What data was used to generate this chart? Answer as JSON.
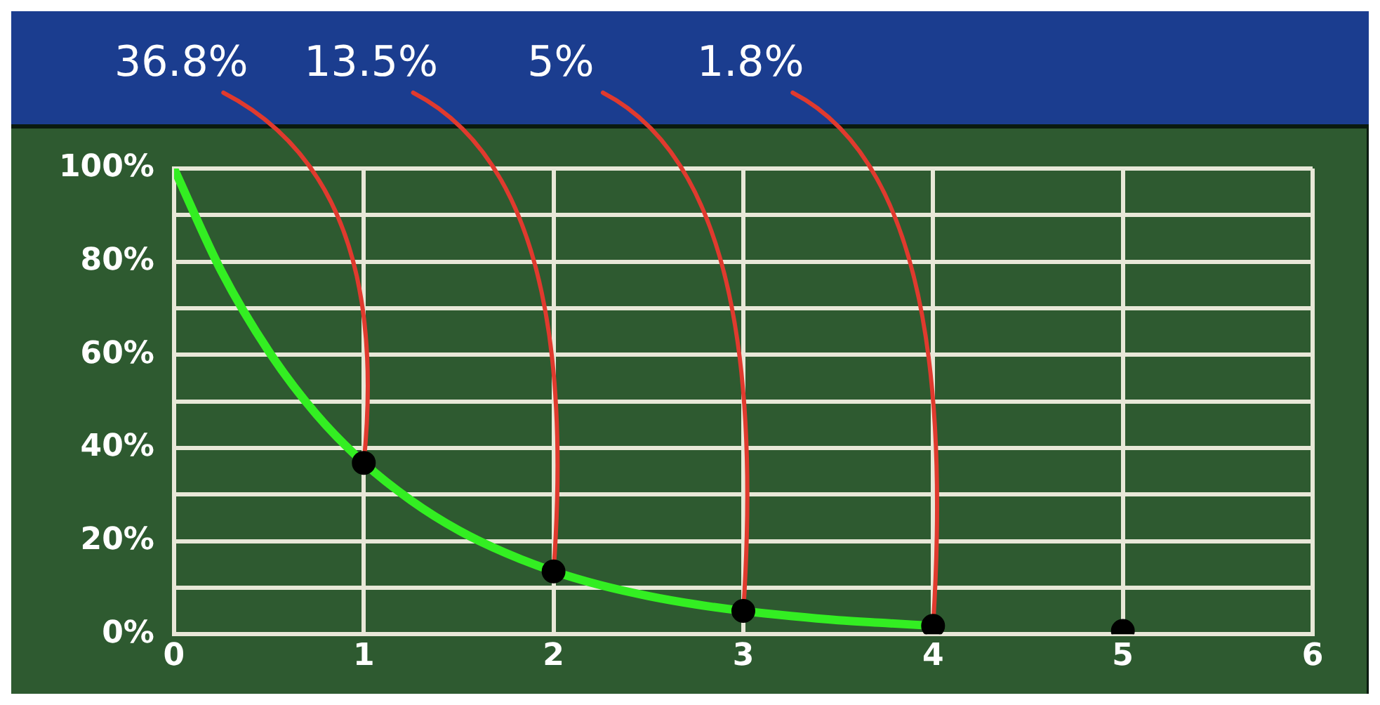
{
  "chart_data": {
    "type": "line",
    "series": [
      {
        "color": "#33ee22",
        "x": [
          0,
          0.25,
          0.5,
          0.75,
          1,
          1.25,
          1.5,
          1.75,
          2,
          2.25,
          2.5,
          2.75,
          3,
          3.25,
          3.5,
          3.75,
          4
        ],
        "values": [
          100,
          77.9,
          60.7,
          47.2,
          36.8,
          28.7,
          22.3,
          17.4,
          13.5,
          10.5,
          8.2,
          6.4,
          5,
          3.9,
          3,
          2.4,
          1.8
        ],
        "marker": "none"
      },
      {
        "type": "scatter",
        "color": "#000000",
        "x": [
          1,
          2,
          3,
          4,
          5
        ],
        "values": [
          36.8,
          13.5,
          5,
          1.8,
          0.7
        ],
        "marker": "circle"
      }
    ],
    "xlim": [
      0,
      6
    ],
    "xticks": [
      0,
      1,
      2,
      3,
      4,
      5,
      6
    ],
    "ylim": [
      0,
      100
    ],
    "yticks": [
      {
        "value": 0,
        "label": "0%"
      },
      {
        "value": 10,
        "label": null
      },
      {
        "value": 20,
        "label": "20%"
      },
      {
        "value": 30,
        "label": null
      },
      {
        "value": 40,
        "label": "40%"
      },
      {
        "value": 50,
        "label": null
      },
      {
        "value": 60,
        "label": "60%"
      },
      {
        "value": 70,
        "label": null
      },
      {
        "value": 80,
        "label": "80%"
      },
      {
        "value": 90,
        "label": null
      },
      {
        "value": 100,
        "label": "100%"
      }
    ],
    "grid": true,
    "legend": false,
    "annotations": [
      {
        "text": "36.8%",
        "x": 1,
        "y": 36.8
      },
      {
        "text": "13.5%",
        "x": 2,
        "y": 13.5
      },
      {
        "text": "5%",
        "x": 3,
        "y": 5
      },
      {
        "text": "1.8%",
        "x": 4,
        "y": 1.8
      }
    ]
  }
}
